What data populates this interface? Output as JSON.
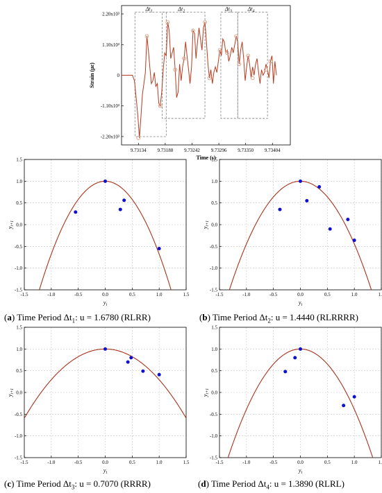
{
  "chart_data": [
    {
      "id": "strain",
      "type": "line",
      "xlabel": "Time (s)",
      "ylabel": "Strain (με)",
      "xticks": [
        "9.73134",
        "9.73188",
        "9.73242",
        "9.73296",
        "9.73350",
        "9.73404"
      ],
      "yticks": [
        "2.20x10³",
        "1.10x10³",
        "0",
        "-1.10x10³",
        "-2.20x10³"
      ],
      "xlim": [
        9.731,
        9.7344
      ],
      "ylim": [
        -2500,
        2500
      ],
      "series_color": "#b83a1e",
      "marker_color": "#d9a48a",
      "intervals": [
        {
          "label": "Δt",
          "sub": "1",
          "x0": 9.73127,
          "x1": 9.7319,
          "y0": -2650,
          "y1": 2260
        },
        {
          "label": "Δt",
          "sub": "2",
          "x0": 9.73182,
          "x1": 9.73268,
          "y0": -1550,
          "y1": 2260
        },
        {
          "label": "Δt",
          "sub": "3",
          "x0": 9.733,
          "x1": 9.73334,
          "y0": -1550,
          "y1": 2260
        },
        {
          "label": "Δt",
          "sub": "4",
          "x0": 9.73334,
          "x1": 9.73394,
          "y0": -1550,
          "y1": 2260
        }
      ],
      "x": [
        9.731,
        9.73122,
        9.73126,
        9.7313,
        9.73133,
        9.73136,
        9.73139,
        9.73142,
        9.73145,
        9.73148,
        9.73151,
        9.73154,
        9.73157,
        9.7316,
        9.73163,
        9.73166,
        9.73169,
        9.73172,
        9.73175,
        9.73178,
        9.73181,
        9.73184,
        9.73187,
        9.7319,
        9.73193,
        9.73196,
        9.73199,
        9.73202,
        9.73205,
        9.73208,
        9.73211,
        9.73214,
        9.73217,
        9.7322,
        9.73223,
        9.73226,
        9.73229,
        9.73232,
        9.73235,
        9.73238,
        9.73241,
        9.73244,
        9.73247,
        9.7325,
        9.73253,
        9.73256,
        9.73259,
        9.73262,
        9.73265,
        9.73268,
        9.73271,
        9.73274,
        9.73277,
        9.7328,
        9.73283,
        9.73286,
        9.73289,
        9.73292,
        9.73295,
        9.73298,
        9.73301,
        9.73304,
        9.73307,
        9.7331,
        9.73313,
        9.73316,
        9.73319,
        9.73322,
        9.73325,
        9.73328,
        9.73331,
        9.73334,
        9.73337,
        9.7334,
        9.73343,
        9.73346,
        9.73349,
        9.73352,
        9.73355,
        9.73358,
        9.73361,
        9.73364,
        9.73367,
        9.7337,
        9.73373,
        9.73376,
        9.73379,
        9.73382,
        9.73385,
        9.73388,
        9.73391,
        9.73394,
        9.73397,
        9.734,
        9.73403,
        9.73406,
        9.73409,
        9.73412
      ],
      "y": [
        0,
        0,
        -200,
        -900,
        -1500,
        -2250,
        -1500,
        -700,
        -300,
        100,
        1400,
        900,
        300,
        -300,
        -200,
        100,
        -400,
        -300,
        -1000,
        -1100,
        -600,
        200,
        800,
        700,
        1900,
        1600,
        600,
        800,
        1000,
        200,
        -800,
        -600,
        400,
        -200,
        300,
        600,
        1200,
        700,
        200,
        -300,
        300,
        1600,
        1500,
        600,
        1200,
        1700,
        1300,
        900,
        1700,
        1900,
        1200,
        400,
        -100,
        200,
        -300,
        100,
        300,
        100,
        500,
        900,
        700,
        1300,
        1200,
        800,
        900,
        500,
        700,
        1000,
        800,
        1100,
        1400,
        1200,
        400,
        900,
        1200,
        600,
        -200,
        300,
        700,
        400,
        -100,
        300,
        0,
        400,
        600,
        100,
        -300,
        200,
        0,
        100,
        400,
        200,
        -100,
        500,
        700,
        -300,
        500,
        0
      ],
      "markers": [
        [
          9.73134,
          -2250
        ],
        [
          9.73151,
          1400
        ],
        [
          9.73178,
          -1100
        ],
        [
          9.73193,
          1900
        ],
        [
          9.73208,
          200
        ],
        [
          9.73226,
          600
        ],
        [
          9.73244,
          1600
        ],
        [
          9.73268,
          1900
        ],
        [
          9.73277,
          -100
        ],
        [
          9.73298,
          900
        ],
        [
          9.73313,
          800
        ],
        [
          9.73331,
          1400
        ],
        [
          9.73337,
          400
        ],
        [
          9.73355,
          700
        ],
        [
          9.73364,
          -100
        ],
        [
          9.73391,
          200
        ],
        [
          9.734,
          500
        ]
      ]
    },
    {
      "id": "a",
      "type": "scatter",
      "u": 1.678,
      "xlabel": "y_i",
      "ylabel": "y_i+1",
      "xlim": [
        -1.5,
        1.5
      ],
      "ylim": [
        -1.5,
        1.5
      ],
      "ticks": [
        "-1.5",
        "-1.0",
        "-0.5",
        "0.0",
        "0.5",
        "1.0",
        "1.5"
      ],
      "grid": true,
      "points": [
        [
          0.0,
          1.0
        ],
        [
          -0.55,
          0.29
        ],
        [
          0.28,
          0.35
        ],
        [
          0.35,
          0.56
        ],
        [
          1.0,
          -0.55
        ]
      ]
    },
    {
      "id": "b",
      "type": "scatter",
      "u": 1.444,
      "xlabel": "y_i",
      "ylabel": "y_i+1",
      "xlim": [
        -1.5,
        1.5
      ],
      "ylim": [
        -1.5,
        1.5
      ],
      "ticks": [
        "-1.5",
        "-1.0",
        "-0.5",
        "0.0",
        "0.5",
        "1.0",
        "1.5"
      ],
      "grid": true,
      "points": [
        [
          0.0,
          1.0
        ],
        [
          -0.38,
          0.35
        ],
        [
          0.12,
          0.55
        ],
        [
          0.35,
          0.87
        ],
        [
          0.55,
          -0.1
        ],
        [
          0.88,
          0.12
        ],
        [
          1.0,
          -0.36
        ]
      ]
    },
    {
      "id": "c",
      "type": "scatter",
      "u": 0.707,
      "xlabel": "y_i",
      "ylabel": "y_i+1",
      "xlim": [
        -1.5,
        1.5
      ],
      "ylim": [
        -1.5,
        1.5
      ],
      "ticks": [
        "-1.5",
        "-1.0",
        "-0.5",
        "0.0",
        "0.5",
        "1.0",
        "1.5"
      ],
      "grid": true,
      "points": [
        [
          0.0,
          1.0
        ],
        [
          0.42,
          0.7
        ],
        [
          0.48,
          0.8
        ],
        [
          0.7,
          0.49
        ],
        [
          1.0,
          0.41
        ]
      ]
    },
    {
      "id": "d",
      "type": "scatter",
      "u": 1.389,
      "xlabel": "y_i",
      "ylabel": "y_i+1",
      "xlim": [
        -1.5,
        1.5
      ],
      "ylim": [
        -1.5,
        1.5
      ],
      "ticks": [
        "-1.5",
        "-1.0",
        "-0.5",
        "0.0",
        "0.5",
        "1.0",
        "1.5"
      ],
      "grid": true,
      "points": [
        [
          0.0,
          1.0
        ],
        [
          -0.28,
          0.48
        ],
        [
          -0.1,
          0.8
        ],
        [
          0.8,
          -0.3
        ],
        [
          1.0,
          -0.1
        ]
      ]
    }
  ],
  "colors": {
    "curve": "#a8321c",
    "point": "#1010d0",
    "grid": "#c8c8c8",
    "box": "#808080"
  },
  "captions": {
    "a": {
      "letter": "a",
      "text": "Time Period Δt",
      "sub": "1",
      "u": ": u = 1.6780 (RLRR)"
    },
    "b": {
      "letter": "b",
      "text": "Time Period Δt",
      "sub": "2",
      "u": ": u = 1.4440 (RLRRRR)"
    },
    "c": {
      "letter": "c",
      "text": "Time Period Δt",
      "sub": "3",
      "u": ": u = 0.7070 (RRRR)"
    },
    "d": {
      "letter": "d",
      "text": "Time Period Δt",
      "sub": "4",
      "u": ": u = 1.3890 (RLRL)"
    }
  }
}
